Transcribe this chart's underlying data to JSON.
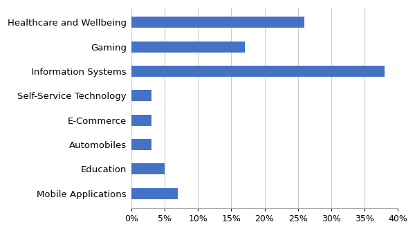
{
  "categories": [
    "Healthcare and Wellbeing",
    "Gaming",
    "Information Systems",
    "Self-Service Technology",
    "E-Commerce",
    "Automobiles",
    "Education",
    "Mobile Applications"
  ],
  "values": [
    0.26,
    0.17,
    0.38,
    0.03,
    0.03,
    0.03,
    0.05,
    0.07
  ],
  "bar_color": "#4472C4",
  "xlim": [
    0,
    0.4
  ],
  "xticks": [
    0.0,
    0.05,
    0.1,
    0.15,
    0.2,
    0.25,
    0.3,
    0.35,
    0.4
  ],
  "background_color": "#ffffff",
  "grid_color": "#cccccc",
  "bar_height": 0.45,
  "fontsize_labels": 9.5,
  "fontsize_ticks": 9
}
